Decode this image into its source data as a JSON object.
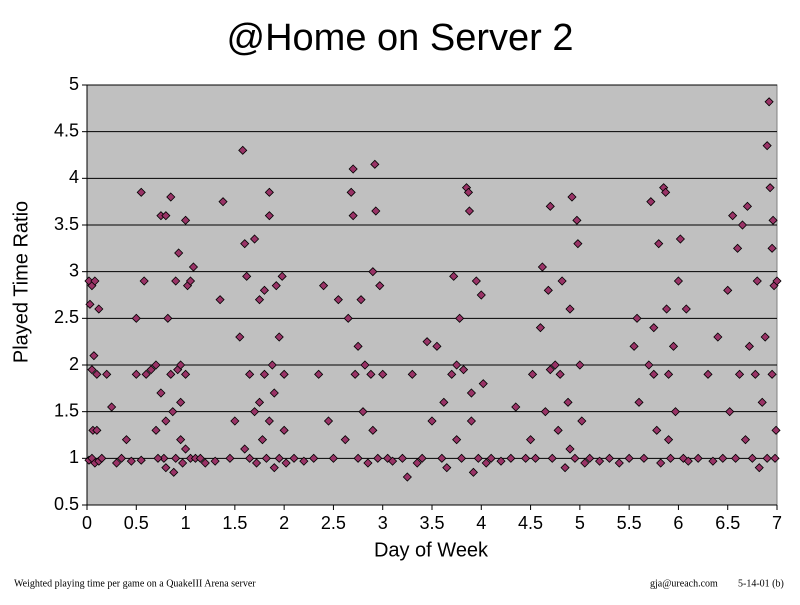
{
  "chart_data": {
    "type": "scatter",
    "title": "@Home on Server 2",
    "xlabel": "Day of Week",
    "ylabel": "Played Time Ratio",
    "footnote": "Weighted playing time per game on a QuakeIII Arena server",
    "credit": "gja@ureach.com",
    "date": "5-14-01 (b)",
    "color": "#993366",
    "grid": true,
    "xlim": [
      0,
      7
    ],
    "ylim": [
      0.5,
      5
    ],
    "xticks": [
      0,
      0.5,
      1,
      1.5,
      2,
      2.5,
      3,
      3.5,
      4,
      4.5,
      5,
      5.5,
      6,
      6.5,
      7
    ],
    "yticks": [
      0.5,
      1,
      1.5,
      2,
      2.5,
      3,
      3.5,
      4,
      4.5,
      5
    ],
    "x": [
      0.02,
      0.05,
      0.08,
      0.03,
      0.05,
      0.1,
      0.06,
      0.1,
      0.02,
      0.05,
      0.08,
      0.12,
      0.15,
      0.07,
      0.12,
      0.2,
      0.25,
      0.3,
      0.35,
      0.4,
      0.45,
      0.5,
      0.5,
      0.55,
      0.55,
      0.58,
      0.6,
      0.65,
      0.7,
      0.7,
      0.75,
      0.78,
      0.8,
      0.8,
      0.82,
      0.85,
      0.85,
      0.87,
      0.88,
      0.9,
      0.9,
      0.92,
      0.93,
      0.95,
      0.95,
      0.97,
      1.0,
      1.0,
      1.02,
      1.05,
      1.05,
      1.08,
      1.1,
      0.75,
      0.8,
      0.95,
      1.0,
      0.72,
      1.15,
      1.2,
      1.3,
      1.35,
      1.38,
      1.45,
      1.5,
      1.55,
      1.58,
      1.6,
      1.62,
      1.65,
      1.65,
      1.7,
      1.7,
      1.72,
      1.75,
      1.78,
      1.8,
      1.8,
      1.82,
      1.85,
      1.85,
      1.85,
      1.88,
      1.9,
      1.9,
      1.92,
      1.95,
      1.98,
      2.0,
      2.0,
      2.02,
      1.6,
      1.75,
      1.95,
      2.1,
      2.2,
      2.3,
      2.35,
      2.4,
      2.45,
      2.5,
      2.55,
      2.62,
      2.65,
      2.68,
      2.7,
      2.7,
      2.72,
      2.75,
      2.78,
      2.8,
      2.82,
      2.85,
      2.88,
      2.9,
      2.9,
      2.92,
      2.93,
      2.95,
      2.97,
      3.0,
      3.05,
      3.1,
      2.75,
      3.2,
      3.25,
      3.3,
      3.35,
      3.4,
      3.45,
      3.5,
      3.55,
      3.6,
      3.62,
      3.65,
      3.7,
      3.72,
      3.75,
      3.78,
      3.8,
      3.82,
      3.85,
      3.87,
      3.88,
      3.9,
      3.92,
      3.95,
      3.97,
      4.0,
      4.02,
      4.05,
      4.1,
      3.75,
      3.9,
      4.2,
      4.3,
      4.35,
      4.45,
      4.5,
      4.52,
      4.55,
      4.6,
      4.62,
      4.65,
      4.68,
      4.7,
      4.72,
      4.75,
      4.78,
      4.8,
      4.82,
      4.85,
      4.88,
      4.9,
      4.92,
      4.95,
      4.97,
      4.98,
      5.0,
      5.02,
      5.05,
      4.7,
      4.9,
      5.1,
      5.2,
      5.3,
      5.4,
      5.5,
      5.55,
      5.58,
      5.6,
      5.65,
      5.7,
      5.72,
      5.75,
      5.78,
      5.8,
      5.82,
      5.85,
      5.87,
      5.88,
      5.9,
      5.92,
      5.95,
      5.97,
      6.0,
      6.02,
      6.05,
      6.08,
      6.1,
      5.75,
      5.9,
      6.2,
      6.3,
      6.35,
      6.4,
      6.45,
      6.5,
      6.52,
      6.55,
      6.58,
      6.6,
      6.62,
      6.65,
      6.68,
      6.7,
      6.72,
      6.75,
      6.78,
      6.8,
      6.82,
      6.85,
      6.88,
      6.9,
      6.9,
      6.92,
      6.93,
      6.95,
      6.95,
      6.97,
      6.98,
      7.0,
      6.96,
      6.99
    ],
    "values": [
      2.9,
      2.85,
      2.9,
      2.65,
      1.95,
      1.9,
      1.3,
      1.3,
      0.98,
      1.0,
      0.95,
      0.97,
      1.0,
      2.1,
      2.6,
      1.9,
      1.55,
      0.95,
      1.0,
      1.2,
      0.97,
      2.5,
      1.9,
      0.98,
      3.85,
      2.9,
      1.9,
      1.95,
      2.0,
      1.3,
      3.6,
      1.0,
      3.6,
      0.9,
      2.5,
      1.9,
      3.8,
      1.5,
      0.85,
      1.0,
      2.9,
      1.95,
      3.2,
      1.2,
      2.0,
      0.95,
      3.55,
      1.9,
      2.85,
      1.0,
      2.9,
      3.05,
      1.0,
      1.7,
      1.4,
      1.6,
      1.1,
      1.0,
      1.0,
      0.95,
      0.97,
      2.7,
      3.75,
      1.0,
      1.4,
      2.3,
      4.3,
      3.3,
      2.95,
      1.9,
      1.0,
      3.35,
      1.5,
      0.95,
      2.7,
      1.2,
      2.8,
      1.9,
      1.0,
      3.85,
      3.6,
      1.4,
      2.0,
      0.9,
      1.7,
      2.85,
      1.0,
      2.95,
      1.9,
      1.3,
      0.95,
      1.1,
      1.6,
      2.3,
      1.0,
      0.97,
      1.0,
      1.9,
      2.85,
      1.4,
      1.0,
      2.7,
      1.2,
      2.5,
      3.85,
      4.1,
      3.6,
      1.9,
      1.0,
      2.7,
      1.5,
      2.0,
      0.95,
      1.9,
      3.0,
      1.3,
      4.15,
      3.65,
      1.0,
      2.85,
      1.9,
      1.0,
      0.97,
      2.2,
      1.0,
      0.8,
      1.9,
      0.95,
      1.0,
      2.25,
      1.4,
      2.2,
      1.0,
      1.6,
      0.9,
      1.9,
      2.95,
      1.2,
      2.5,
      1.0,
      1.95,
      3.9,
      3.85,
      3.65,
      1.4,
      0.85,
      2.9,
      1.0,
      2.75,
      1.8,
      0.95,
      1.0,
      2.0,
      1.7,
      0.97,
      1.0,
      1.55,
      1.0,
      1.2,
      1.9,
      1.0,
      2.4,
      3.05,
      1.5,
      2.8,
      3.7,
      1.0,
      2.0,
      1.3,
      1.9,
      2.9,
      0.9,
      1.6,
      2.6,
      3.8,
      1.0,
      3.55,
      3.3,
      2.0,
      1.4,
      0.95,
      1.95,
      1.1,
      1.0,
      0.97,
      1.0,
      0.95,
      1.0,
      2.2,
      2.5,
      1.6,
      1.0,
      2.0,
      3.75,
      1.9,
      1.3,
      3.3,
      0.95,
      3.9,
      3.85,
      2.6,
      1.9,
      1.0,
      2.2,
      1.5,
      2.9,
      3.35,
      1.0,
      2.6,
      0.97,
      2.4,
      1.2,
      1.0,
      1.9,
      0.97,
      2.3,
      1.0,
      2.8,
      1.5,
      3.6,
      1.0,
      3.25,
      1.9,
      3.5,
      1.2,
      3.7,
      2.2,
      1.0,
      1.9,
      2.9,
      0.9,
      1.6,
      2.3,
      4.35,
      1.0,
      4.82,
      3.9,
      3.25,
      1.9,
      2.85,
      1.0,
      2.9,
      3.55,
      1.3
    ]
  }
}
